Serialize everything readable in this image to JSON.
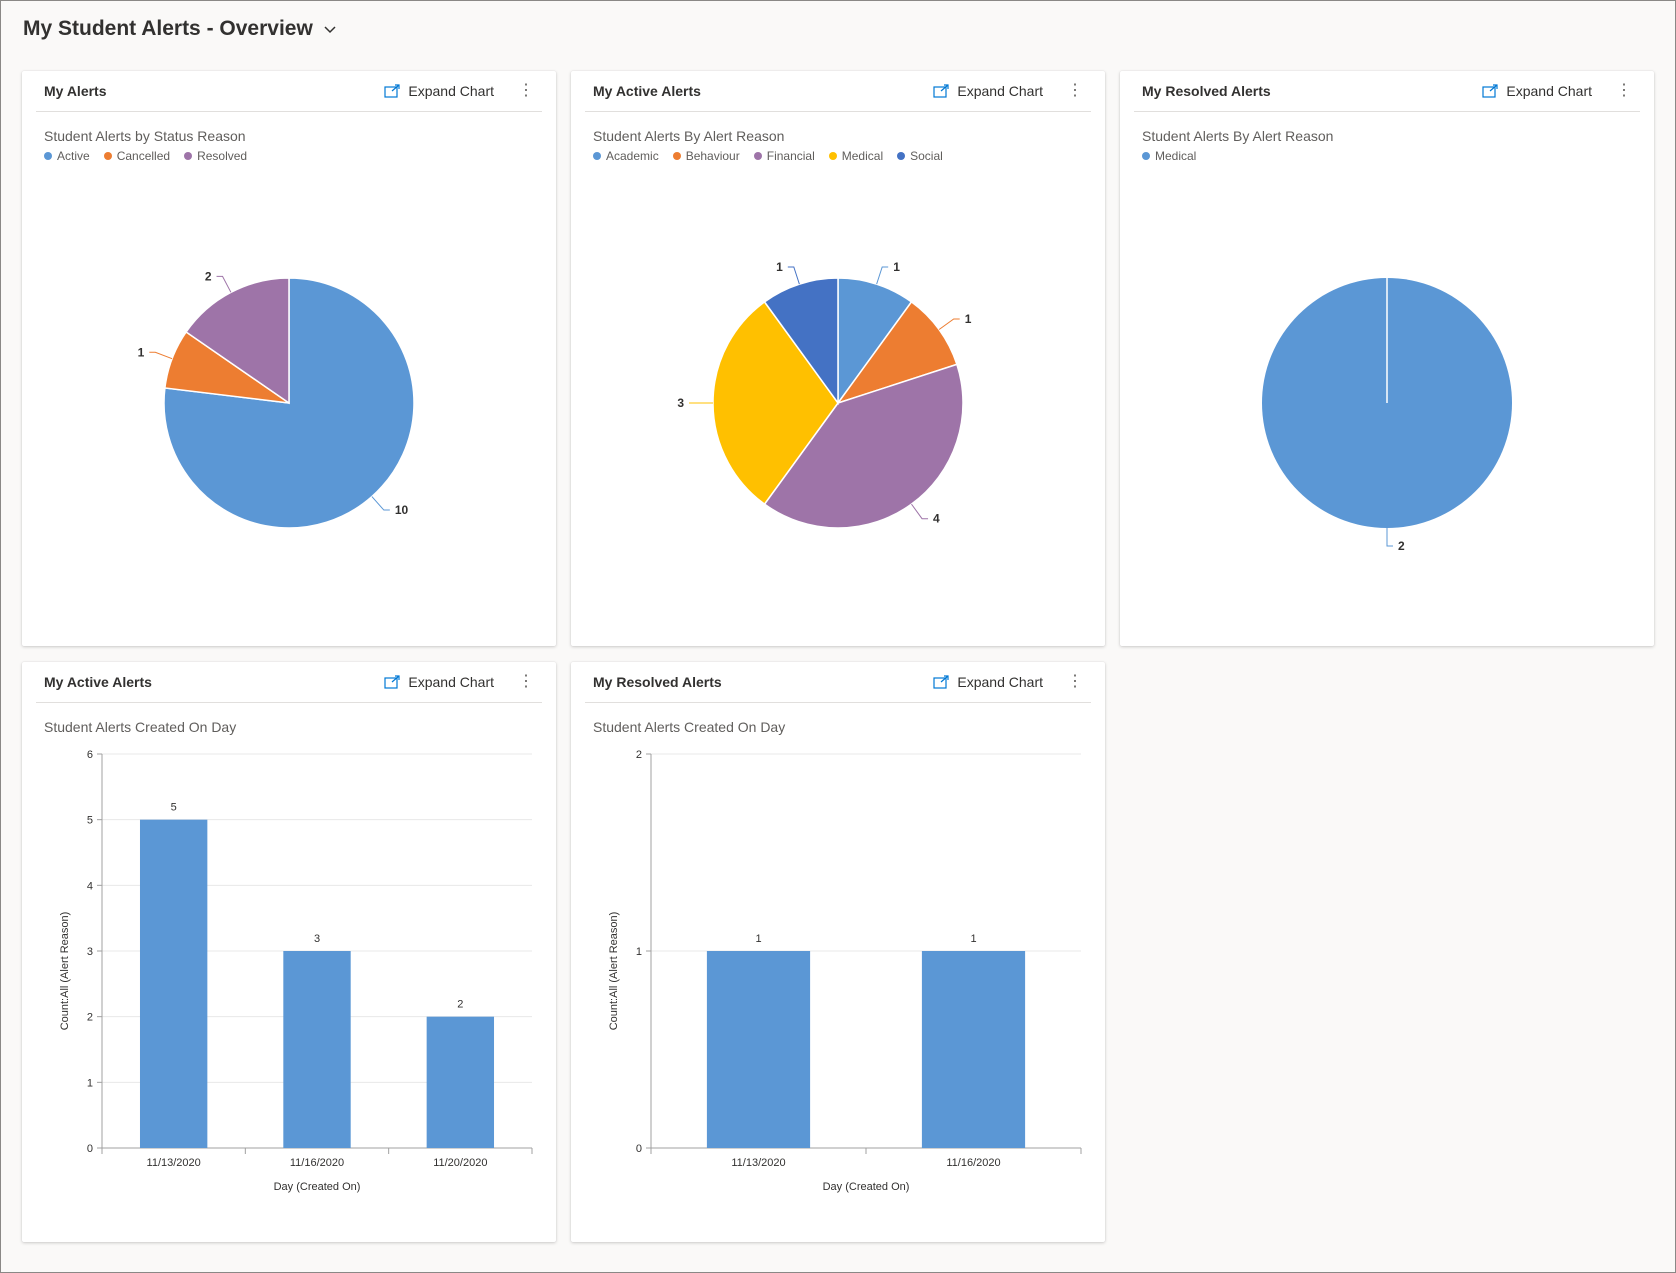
{
  "header": {
    "title": "My Student Alerts - Overview"
  },
  "common": {
    "expand_label": "Expand Chart"
  },
  "cards": [
    {
      "title": "My Alerts",
      "chart_data": {
        "type": "pie",
        "title": "Student Alerts by Status Reason",
        "legend_position": "top-left",
        "categories": [
          "Active",
          "Cancelled",
          "Resolved"
        ],
        "values": [
          10,
          1,
          2
        ],
        "value_labels": [
          "10",
          "1",
          "2"
        ],
        "colors": [
          "#5b97d5",
          "#ed7d31",
          "#9e74a8"
        ]
      }
    },
    {
      "title": "My Active Alerts",
      "chart_data": {
        "type": "pie",
        "title": "Student Alerts By Alert Reason",
        "legend_position": "top-left",
        "categories": [
          "Academic",
          "Behaviour",
          "Financial",
          "Medical",
          "Social"
        ],
        "values": [
          1,
          1,
          4,
          3,
          1
        ],
        "value_labels": [
          "1",
          "1",
          "4",
          "3",
          "1"
        ],
        "colors": [
          "#5b97d5",
          "#ed7d31",
          "#9e74a8",
          "#ffc000",
          "#4472c4"
        ]
      }
    },
    {
      "title": "My Resolved Alerts",
      "chart_data": {
        "type": "pie",
        "title": "Student Alerts By Alert Reason",
        "legend_position": "top-left",
        "categories": [
          "Medical"
        ],
        "values": [
          2
        ],
        "value_labels": [
          "2"
        ],
        "colors": [
          "#5b97d5"
        ]
      }
    },
    {
      "title": "My Active Alerts",
      "chart_data": {
        "type": "bar",
        "title": "Student Alerts Created On Day",
        "xlabel": "Day (Created On)",
        "ylabel": "Count:All (Alert Reason)",
        "categories": [
          "11/13/2020",
          "11/16/2020",
          "11/20/2020"
        ],
        "values": [
          5,
          3,
          2
        ],
        "value_labels": [
          "5",
          "3",
          "2"
        ],
        "ylim": [
          0,
          6
        ],
        "yticks": [
          "0",
          "1",
          "2",
          "3",
          "4",
          "5",
          "6"
        ],
        "grid": true,
        "color": "#5b97d5"
      }
    },
    {
      "title": "My Resolved Alerts",
      "chart_data": {
        "type": "bar",
        "title": "Student Alerts Created On Day",
        "xlabel": "Day (Created On)",
        "ylabel": "Count:All (Alert Reason)",
        "categories": [
          "11/13/2020",
          "11/16/2020"
        ],
        "values": [
          1,
          1
        ],
        "value_labels": [
          "1",
          "1"
        ],
        "ylim": [
          0,
          2
        ],
        "yticks": [
          "0",
          "1",
          "2"
        ],
        "grid": true,
        "color": "#5b97d5"
      }
    }
  ]
}
